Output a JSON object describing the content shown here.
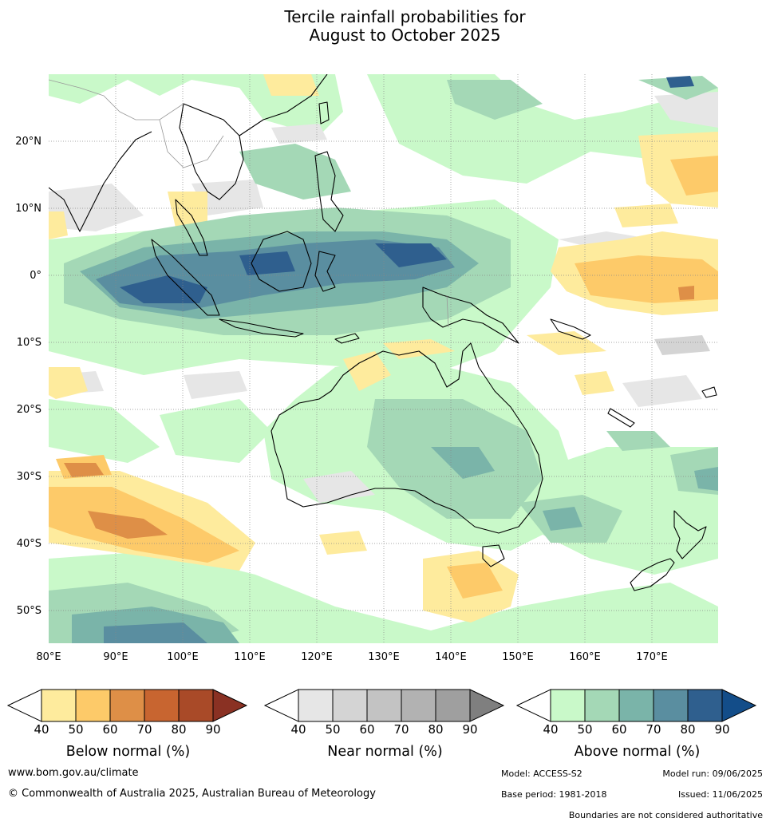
{
  "title_line1": "Tercile rainfall probabilities for",
  "title_line2": "August to October 2025",
  "map": {
    "lon_range": [
      80,
      180
    ],
    "lat_range": [
      -55,
      30
    ],
    "lon_ticks": [
      "80°E",
      "90°E",
      "100°E",
      "110°E",
      "120°E",
      "130°E",
      "140°E",
      "150°E",
      "160°E",
      "170°E"
    ],
    "lat_ticks": [
      "20°N",
      "10°N",
      "0°",
      "10°S",
      "20°S",
      "30°S",
      "40°S",
      "50°S"
    ],
    "gridlines": true
  },
  "colorbars": [
    {
      "label": "Below normal (%)",
      "ticks": [
        "40",
        "50",
        "60",
        "70",
        "80",
        "90"
      ],
      "colors": [
        "#ffffff",
        "#feeb9d",
        "#fdca69",
        "#de8f47",
        "#c86530",
        "#a94a28",
        "#8a3123"
      ]
    },
    {
      "label": "Near normal (%)",
      "ticks": [
        "40",
        "50",
        "60",
        "70",
        "80",
        "90"
      ],
      "colors": [
        "#ffffff",
        "#e6e6e6",
        "#d4d4d4",
        "#c3c3c3",
        "#b2b2b2",
        "#9f9f9f",
        "#7f7f7f"
      ]
    },
    {
      "label": "Above normal (%)",
      "ticks": [
        "40",
        "50",
        "60",
        "70",
        "80",
        "90"
      ],
      "colors": [
        "#ffffff",
        "#c9f9c9",
        "#a4d8b6",
        "#7ab4a9",
        "#5a8ea0",
        "#2f5f8e",
        "#134d89"
      ]
    }
  ],
  "footer": {
    "url": "www.bom.gov.au/climate",
    "copyright": "© Commonwealth of Australia 2025, Australian Bureau of Meteorology",
    "model": "Model: ACCESS-S2",
    "model_run": "Model run: 09/06/2025",
    "base_period": "Base period: 1981-2018",
    "issued": "Issued: 11/06/2025",
    "disclaimer": "Boundaries are not considered authoritative"
  }
}
